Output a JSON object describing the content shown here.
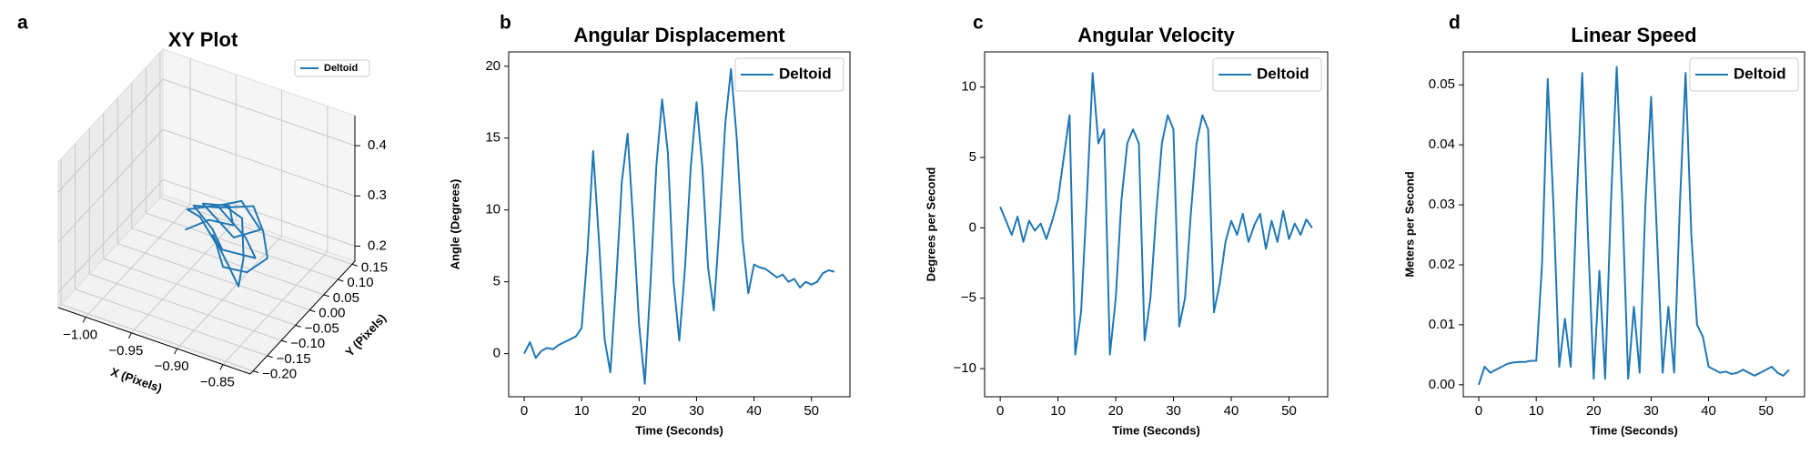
{
  "chart_data": [
    {
      "type": "line3d",
      "panel_label": "a",
      "title": "XY Plot",
      "xlabel": "X (Pixels)",
      "ylabel": "Y (Pixels)",
      "legend": "upper right",
      "xlim": [
        -1.03,
        -0.82
      ],
      "ylim": [
        -0.21,
        0.16
      ],
      "zlim": [
        0.17,
        0.46
      ],
      "xticks": [
        {
          "value": -1.0,
          "label": "−1.00"
        },
        {
          "value": -0.95,
          "label": "−0.95"
        },
        {
          "value": -0.9,
          "label": "−0.90"
        },
        {
          "value": -0.85,
          "label": "−0.85"
        }
      ],
      "yticks": [
        {
          "value": -0.2,
          "label": "−0.20"
        },
        {
          "value": -0.15,
          "label": "−0.15"
        },
        {
          "value": -0.1,
          "label": "−0.10"
        },
        {
          "value": -0.05,
          "label": "−0.05"
        },
        {
          "value": 0,
          "label": "0.00"
        },
        {
          "value": 0.05,
          "label": "0.05"
        },
        {
          "value": 0.1,
          "label": "0.10"
        },
        {
          "value": 0.15,
          "label": "0.15"
        }
      ],
      "zticks": [
        0.2,
        0.3,
        0.4
      ],
      "series": [
        {
          "name": "Deltoid",
          "color": "#1f77b4",
          "x": [
            -0.95,
            -0.93,
            -0.91,
            -0.92,
            -0.94,
            -0.9,
            -0.88,
            -0.91,
            -0.93,
            -0.89,
            -0.87,
            -0.9,
            -0.92,
            -0.95,
            -0.93,
            -0.9,
            -0.88,
            -0.86,
            -0.87,
            -0.89,
            -0.91,
            -0.94,
            -0.96,
            -0.93,
            -0.9,
            -0.88,
            -0.87,
            -0.89,
            -0.92
          ],
          "y": [
            -0.02,
            0.0,
            0.02,
            0.04,
            0.01,
            -0.01,
            0.02,
            0.05,
            0.03,
            0.0,
            -0.03,
            -0.05,
            -0.02,
            0.01,
            0.04,
            0.06,
            0.03,
            -0.02,
            -0.06,
            -0.08,
            -0.04,
            0.0,
            0.02,
            0.05,
            0.02,
            -0.04,
            -0.09,
            -0.06,
            -0.02
          ],
          "z": [
            0.26,
            0.28,
            0.27,
            0.29,
            0.3,
            0.27,
            0.28,
            0.3,
            0.29,
            0.27,
            0.26,
            0.27,
            0.28,
            0.29,
            0.28,
            0.29,
            0.27,
            0.26,
            0.25,
            0.26,
            0.27,
            0.28,
            0.27,
            0.28,
            0.29,
            0.26,
            0.24,
            0.25,
            0.27
          ]
        }
      ]
    },
    {
      "type": "line",
      "panel_label": "b",
      "title": "Angular Displacement",
      "xlabel": "Time (Seconds)",
      "ylabel": "Angle (Degrees)",
      "legend": "upper right",
      "xlim": [
        -2.7,
        56.7
      ],
      "ylim": [
        -3,
        21
      ],
      "xticks": [
        0,
        10,
        20,
        30,
        40,
        50
      ],
      "yticks": [
        0,
        5,
        10,
        15,
        20
      ],
      "x": [
        0,
        1,
        2,
        3,
        4,
        5,
        6,
        7,
        8,
        9,
        10,
        11,
        12,
        13,
        14,
        15,
        16,
        17,
        18,
        19,
        20,
        21,
        22,
        23,
        24,
        25,
        26,
        27,
        28,
        29,
        30,
        31,
        32,
        33,
        34,
        35,
        36,
        37,
        38,
        39,
        40,
        41,
        42,
        43,
        44,
        45,
        46,
        47,
        48,
        49,
        50,
        51,
        52,
        53,
        54
      ],
      "series": [
        {
          "name": "Deltoid",
          "color": "#1f77b4",
          "values": [
            0,
            0.8,
            -0.3,
            0.2,
            0.4,
            0.3,
            0.6,
            0.8,
            1.0,
            1.2,
            1.8,
            7,
            14.1,
            8,
            1,
            -1.3,
            5,
            12,
            15.3,
            9,
            2,
            -2.1,
            5,
            13,
            17.7,
            14,
            5,
            0.9,
            6,
            13,
            17.5,
            13,
            6,
            3.0,
            9,
            16,
            19.8,
            15,
            8,
            4.2,
            6.2,
            6.0,
            5.9,
            5.6,
            5.3,
            5.5,
            5.0,
            5.2,
            4.6,
            5.0,
            4.8,
            5.0,
            5.6,
            5.8,
            5.7
          ]
        }
      ]
    },
    {
      "type": "line",
      "panel_label": "c",
      "title": "Angular Velocity",
      "xlabel": "Time (Seconds)",
      "ylabel": "Degrees per Second",
      "legend": "upper right",
      "xlim": [
        -2.7,
        56.7
      ],
      "ylim": [
        -12,
        12.5
      ],
      "xticks": [
        0,
        10,
        20,
        30,
        40,
        50
      ],
      "yticks": [
        {
          "value": -10,
          "label": "−10"
        },
        {
          "value": -5,
          "label": "−5"
        },
        0,
        5,
        10
      ],
      "x": [
        0,
        1,
        2,
        3,
        4,
        5,
        6,
        7,
        8,
        9,
        10,
        11,
        12,
        13,
        14,
        15,
        16,
        17,
        18,
        19,
        20,
        21,
        22,
        23,
        24,
        25,
        26,
        27,
        28,
        29,
        30,
        31,
        32,
        33,
        34,
        35,
        36,
        37,
        38,
        39,
        40,
        41,
        42,
        43,
        44,
        45,
        46,
        47,
        48,
        49,
        50,
        51,
        52,
        53,
        54
      ],
      "series": [
        {
          "name": "Deltoid",
          "color": "#1f77b4",
          "values": [
            1.5,
            0.5,
            -0.5,
            0.8,
            -1,
            0.5,
            -0.2,
            0.3,
            -0.8,
            0.5,
            2,
            5,
            8,
            -9,
            -6,
            2,
            11,
            6,
            7,
            -9,
            -5,
            2,
            6,
            7,
            6,
            -8,
            -5,
            1,
            6,
            8,
            7,
            -7,
            -5,
            1,
            6,
            8,
            7,
            -6,
            -4,
            -1,
            0.5,
            -0.5,
            1,
            -1,
            0.2,
            1,
            -1.5,
            0.5,
            -1,
            1.2,
            -0.8,
            0.3,
            -0.5,
            0.6,
            0
          ]
        }
      ]
    },
    {
      "type": "line",
      "panel_label": "d",
      "title": "Linear Speed",
      "xlabel": "Time (Seconds)",
      "ylabel": "Meters per Second",
      "legend": "upper right",
      "xlim": [
        -2.7,
        56.7
      ],
      "ylim": [
        -0.002,
        0.0555
      ],
      "xticks": [
        0,
        10,
        20,
        30,
        40,
        50
      ],
      "yticks": [
        {
          "value": 0,
          "label": "0.00"
        },
        {
          "value": 0.01,
          "label": "0.01"
        },
        {
          "value": 0.02,
          "label": "0.02"
        },
        {
          "value": 0.03,
          "label": "0.03"
        },
        {
          "value": 0.04,
          "label": "0.04"
        },
        {
          "value": 0.05,
          "label": "0.05"
        }
      ],
      "x": [
        0,
        1,
        2,
        3,
        4,
        5,
        6,
        7,
        8,
        9,
        10,
        11,
        12,
        13,
        14,
        15,
        16,
        17,
        18,
        19,
        20,
        21,
        22,
        23,
        24,
        25,
        26,
        27,
        28,
        29,
        30,
        31,
        32,
        33,
        34,
        35,
        36,
        37,
        38,
        39,
        40,
        41,
        42,
        43,
        44,
        45,
        46,
        47,
        48,
        49,
        50,
        51,
        52,
        53,
        54
      ],
      "series": [
        {
          "name": "Deltoid",
          "color": "#1f77b4",
          "values": [
            0,
            0.003,
            0.002,
            0.0025,
            0.003,
            0.0035,
            0.0037,
            0.0038,
            0.0038,
            0.004,
            0.004,
            0.02,
            0.051,
            0.03,
            0.003,
            0.011,
            0.003,
            0.03,
            0.052,
            0.025,
            0.001,
            0.019,
            0.001,
            0.03,
            0.053,
            0.03,
            0.001,
            0.013,
            0.002,
            0.03,
            0.048,
            0.025,
            0.002,
            0.013,
            0.002,
            0.03,
            0.052,
            0.025,
            0.01,
            0.008,
            0.003,
            0.0025,
            0.002,
            0.0022,
            0.0018,
            0.002,
            0.0025,
            0.002,
            0.0015,
            0.002,
            0.0025,
            0.003,
            0.002,
            0.0015,
            0.0025
          ]
        }
      ]
    }
  ]
}
